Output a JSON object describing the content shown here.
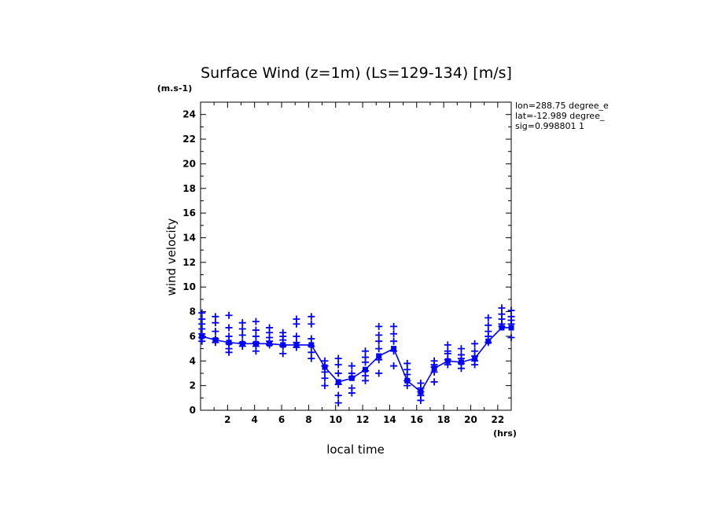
{
  "chart_data": {
    "type": "line",
    "title": "Surface Wind (z=1m) (Ls=129-134) [m/s]",
    "xlabel": "local time",
    "ylabel": "wind velocity",
    "x_unit": "(hrs)",
    "y_unit": "(m.s-1)",
    "xlim": [
      0,
      23
    ],
    "ylim": [
      0,
      25
    ],
    "x_ticks": [
      "2",
      "4",
      "6",
      "8",
      "10",
      "12",
      "14",
      "16",
      "18",
      "20",
      "22"
    ],
    "y_ticks": [
      "0",
      "2",
      "4",
      "6",
      "8",
      "10",
      "12",
      "14",
      "16",
      "18",
      "20",
      "22",
      "24"
    ],
    "info_lines": [
      "lon=288.75 degree_e",
      "lat=-12.989 degree_",
      "sig=0.998801 1"
    ],
    "color": "#0000ff",
    "series": [
      {
        "style": "line-with-square-markers",
        "x": [
          0.1,
          1.1,
          2.1,
          3.1,
          4.1,
          5.1,
          6.1,
          7.1,
          8.2,
          9.2,
          10.2,
          11.2,
          12.2,
          13.2,
          14.3,
          15.3,
          16.3,
          17.3,
          18.3,
          19.3,
          20.3,
          21.3,
          22.3,
          23.0
        ],
        "y": [
          6.0,
          5.7,
          5.5,
          5.4,
          5.4,
          5.4,
          5.3,
          5.3,
          5.3,
          3.5,
          2.3,
          2.6,
          3.3,
          4.4,
          5.0,
          2.4,
          1.5,
          3.4,
          4.0,
          3.9,
          4.2,
          5.6,
          6.7,
          6.7
        ]
      },
      {
        "style": "plus-markers",
        "x": [
          0.1,
          0.1,
          0.1,
          0.1,
          0.1,
          0.1,
          0.1,
          1.1,
          1.1,
          1.1,
          1.1,
          1.1,
          2.1,
          2.1,
          2.1,
          2.1,
          2.1,
          2.1,
          3.1,
          3.1,
          3.1,
          3.1,
          3.1,
          4.1,
          4.1,
          4.1,
          4.1,
          4.1,
          4.1,
          5.1,
          5.1,
          5.1,
          5.1,
          5.1,
          6.1,
          6.1,
          6.1,
          6.1,
          6.1,
          7.1,
          7.1,
          7.1,
          7.1,
          7.1,
          8.2,
          8.2,
          8.2,
          8.2,
          8.2,
          8.2,
          9.2,
          9.2,
          9.2,
          9.2,
          9.2,
          10.2,
          10.2,
          10.2,
          10.2,
          10.2,
          10.2,
          11.2,
          11.2,
          11.2,
          11.2,
          11.2,
          12.2,
          12.2,
          12.2,
          12.2,
          12.2,
          12.2,
          13.2,
          13.2,
          13.2,
          13.2,
          13.2,
          13.2,
          14.3,
          14.3,
          14.3,
          14.3,
          14.3,
          15.3,
          15.3,
          15.3,
          15.3,
          15.3,
          16.3,
          16.3,
          16.3,
          16.3,
          16.3,
          17.3,
          17.3,
          17.3,
          17.3,
          17.3,
          18.3,
          18.3,
          18.3,
          18.3,
          18.3,
          19.3,
          19.3,
          19.3,
          19.3,
          19.3,
          20.3,
          20.3,
          20.3,
          20.3,
          20.3,
          21.3,
          21.3,
          21.3,
          21.3,
          21.3,
          22.3,
          22.3,
          22.3,
          22.3,
          22.3,
          23.0,
          23.0,
          23.0,
          23.0,
          23.0
        ],
        "y": [
          7.9,
          7.4,
          7.0,
          6.6,
          6.2,
          5.9,
          5.6,
          7.6,
          7.1,
          6.4,
          5.8,
          5.5,
          7.7,
          6.7,
          6.0,
          5.4,
          5.0,
          4.7,
          7.1,
          6.6,
          6.1,
          5.5,
          5.2,
          7.2,
          6.5,
          6.0,
          5.5,
          5.2,
          4.8,
          6.7,
          6.3,
          5.9,
          5.6,
          5.3,
          6.3,
          6.0,
          5.7,
          5.2,
          4.6,
          7.4,
          7.0,
          6.0,
          5.5,
          5.1,
          7.6,
          7.0,
          5.8,
          5.2,
          4.7,
          4.2,
          4.0,
          3.6,
          3.1,
          2.6,
          2.0,
          4.2,
          3.7,
          3.0,
          2.1,
          1.2,
          0.6,
          3.6,
          3.0,
          2.7,
          1.8,
          1.4,
          4.8,
          4.3,
          3.9,
          3.2,
          2.8,
          2.4,
          6.8,
          6.1,
          5.6,
          5.0,
          4.1,
          3.0,
          6.8,
          6.2,
          5.6,
          4.8,
          3.6,
          3.8,
          3.3,
          2.9,
          2.4,
          2.0,
          2.2,
          1.8,
          1.5,
          1.2,
          0.8,
          4.0,
          3.7,
          3.5,
          3.1,
          2.3,
          5.3,
          4.8,
          4.6,
          4.1,
          3.7,
          5.0,
          4.5,
          4.2,
          3.8,
          3.4,
          5.4,
          4.8,
          4.4,
          4.0,
          3.7,
          7.5,
          6.9,
          6.4,
          6.0,
          5.5,
          8.3,
          7.8,
          7.4,
          7.0,
          6.8,
          8.1,
          7.6,
          7.3,
          7.0,
          5.9
        ]
      }
    ]
  }
}
